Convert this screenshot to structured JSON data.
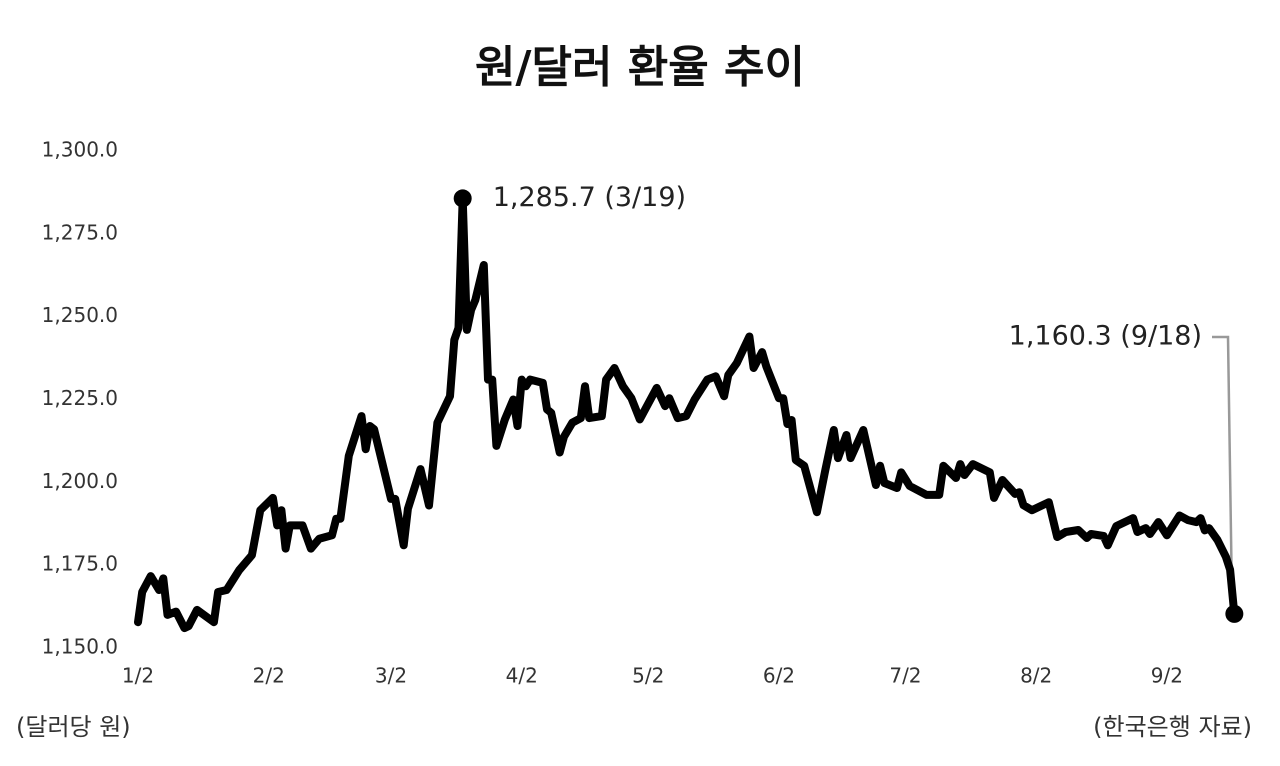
{
  "chart_data": {
    "type": "line",
    "title": "원/달러 환율 추이",
    "y_unit": "(달러당 원)",
    "source": "(한국은행 자료)",
    "color": "#000000",
    "x": [
      2,
      3,
      5,
      7,
      8,
      9,
      11,
      13,
      14,
      16,
      20,
      21,
      23,
      26,
      29,
      31,
      34,
      35,
      36,
      37,
      38,
      41,
      43,
      45,
      48,
      49,
      50,
      52,
      55,
      56,
      57,
      58,
      62,
      63,
      65,
      66,
      69,
      71,
      73,
      76,
      77,
      78,
      79,
      80,
      81,
      82,
      84,
      85,
      86,
      87,
      89,
      91,
      92,
      93,
      94,
      95,
      98,
      99,
      100,
      102,
      103,
      105,
      107,
      108,
      109,
      112,
      113,
      115,
      117,
      119,
      121,
      125,
      127,
      128,
      130,
      132,
      134,
      137,
      139,
      141,
      142,
      144,
      147,
      148,
      150,
      151,
      154,
      155,
      156,
      157,
      158,
      160,
      163,
      165,
      167,
      168,
      170,
      171,
      174,
      177,
      178,
      179,
      182,
      183,
      185,
      189,
      192,
      193,
      196,
      197,
      198,
      200,
      204,
      205,
      207,
      210,
      211,
      212,
      214,
      218,
      220,
      222,
      225,
      227,
      228,
      231,
      232,
      234,
      236,
      238,
      239,
      241,
      242,
      244,
      246,
      249,
      251,
      253,
      254,
      255,
      256,
      258,
      260,
      261,
      262
    ],
    "values": [
      1157.8,
      1166.9,
      1171.7,
      1167.5,
      1171.0,
      1160.0,
      1161.0,
      1156.0,
      1156.6,
      1161.5,
      1157.8,
      1166.9,
      1167.5,
      1173.5,
      1178.0,
      1191.6,
      1195.3,
      1187.0,
      1191.6,
      1180.0,
      1187.0,
      1187.0,
      1180.0,
      1183.0,
      1184.0,
      1189.0,
      1189.0,
      1208.0,
      1220.0,
      1210.0,
      1217.0,
      1216.0,
      1195.0,
      1195.0,
      1181.0,
      1192.0,
      1204.0,
      1193.0,
      1218.0,
      1226.0,
      1243.0,
      1246.6,
      1285.7,
      1246.0,
      1252.0,
      1255.0,
      1265.6,
      1231.0,
      1231.0,
      1211.0,
      1219.0,
      1225.0,
      1217.0,
      1231.0,
      1229.0,
      1231.0,
      1230.0,
      1222.0,
      1221.0,
      1209.0,
      1213.7,
      1218.0,
      1219.4,
      1229.0,
      1219.4,
      1220.0,
      1231.0,
      1234.5,
      1229.0,
      1225.4,
      1219.0,
      1228.5,
      1223.0,
      1225.4,
      1219.4,
      1220.0,
      1225.0,
      1231.0,
      1232.0,
      1226.0,
      1232.4,
      1236.0,
      1244.0,
      1234.5,
      1239.3,
      1235.0,
      1225.4,
      1225.4,
      1217.6,
      1218.8,
      1206.7,
      1205.0,
      1191.0,
      1203.7,
      1215.8,
      1207.3,
      1214.3,
      1207.3,
      1215.8,
      1199.2,
      1205.0,
      1199.8,
      1198.3,
      1203.0,
      1198.9,
      1196.2,
      1196.2,
      1205.0,
      1201.3,
      1205.5,
      1202.2,
      1205.5,
      1203.0,
      1195.3,
      1200.7,
      1196.5,
      1197.0,
      1193.1,
      1191.6,
      1194.0,
      1183.5,
      1185.0,
      1185.6,
      1183.2,
      1184.4,
      1183.8,
      1181.0,
      1186.8,
      1188.0,
      1189.2,
      1185.0,
      1186.2,
      1184.4,
      1188.0,
      1184.0,
      1190.0,
      1188.6,
      1188.0,
      1189.2,
      1185.5,
      1186.2,
      1182.6,
      1177.5,
      1173.6,
      1160.3
    ],
    "xlim": [
      2,
      265
    ],
    "xticks": [
      {
        "value": 2,
        "label": "1/2"
      },
      {
        "value": 33,
        "label": "2/2"
      },
      {
        "value": 62,
        "label": "3/2"
      },
      {
        "value": 93,
        "label": "4/2"
      },
      {
        "value": 123,
        "label": "5/2"
      },
      {
        "value": 154,
        "label": "6/2"
      },
      {
        "value": 184,
        "label": "7/2"
      },
      {
        "value": 215,
        "label": "8/2"
      },
      {
        "value": 246,
        "label": "9/2"
      }
    ],
    "ylim": [
      1150,
      1300
    ],
    "yticks": [
      {
        "value": 1150,
        "label": "1,150.0"
      },
      {
        "value": 1175,
        "label": "1,175.0"
      },
      {
        "value": 1200,
        "label": "1,200.0"
      },
      {
        "value": 1225,
        "label": "1,225.0"
      },
      {
        "value": 1250,
        "label": "1,250.0"
      },
      {
        "value": 1275,
        "label": "1,275.0"
      },
      {
        "value": 1300,
        "label": "1,300.0"
      }
    ],
    "grid": false,
    "annotations": [
      {
        "text": "1,285.7 (3/19)",
        "x": 79,
        "y": 1285.7
      },
      {
        "text": "1,160.3 (9/18)",
        "x": 262,
        "y": 1160.3
      }
    ]
  }
}
